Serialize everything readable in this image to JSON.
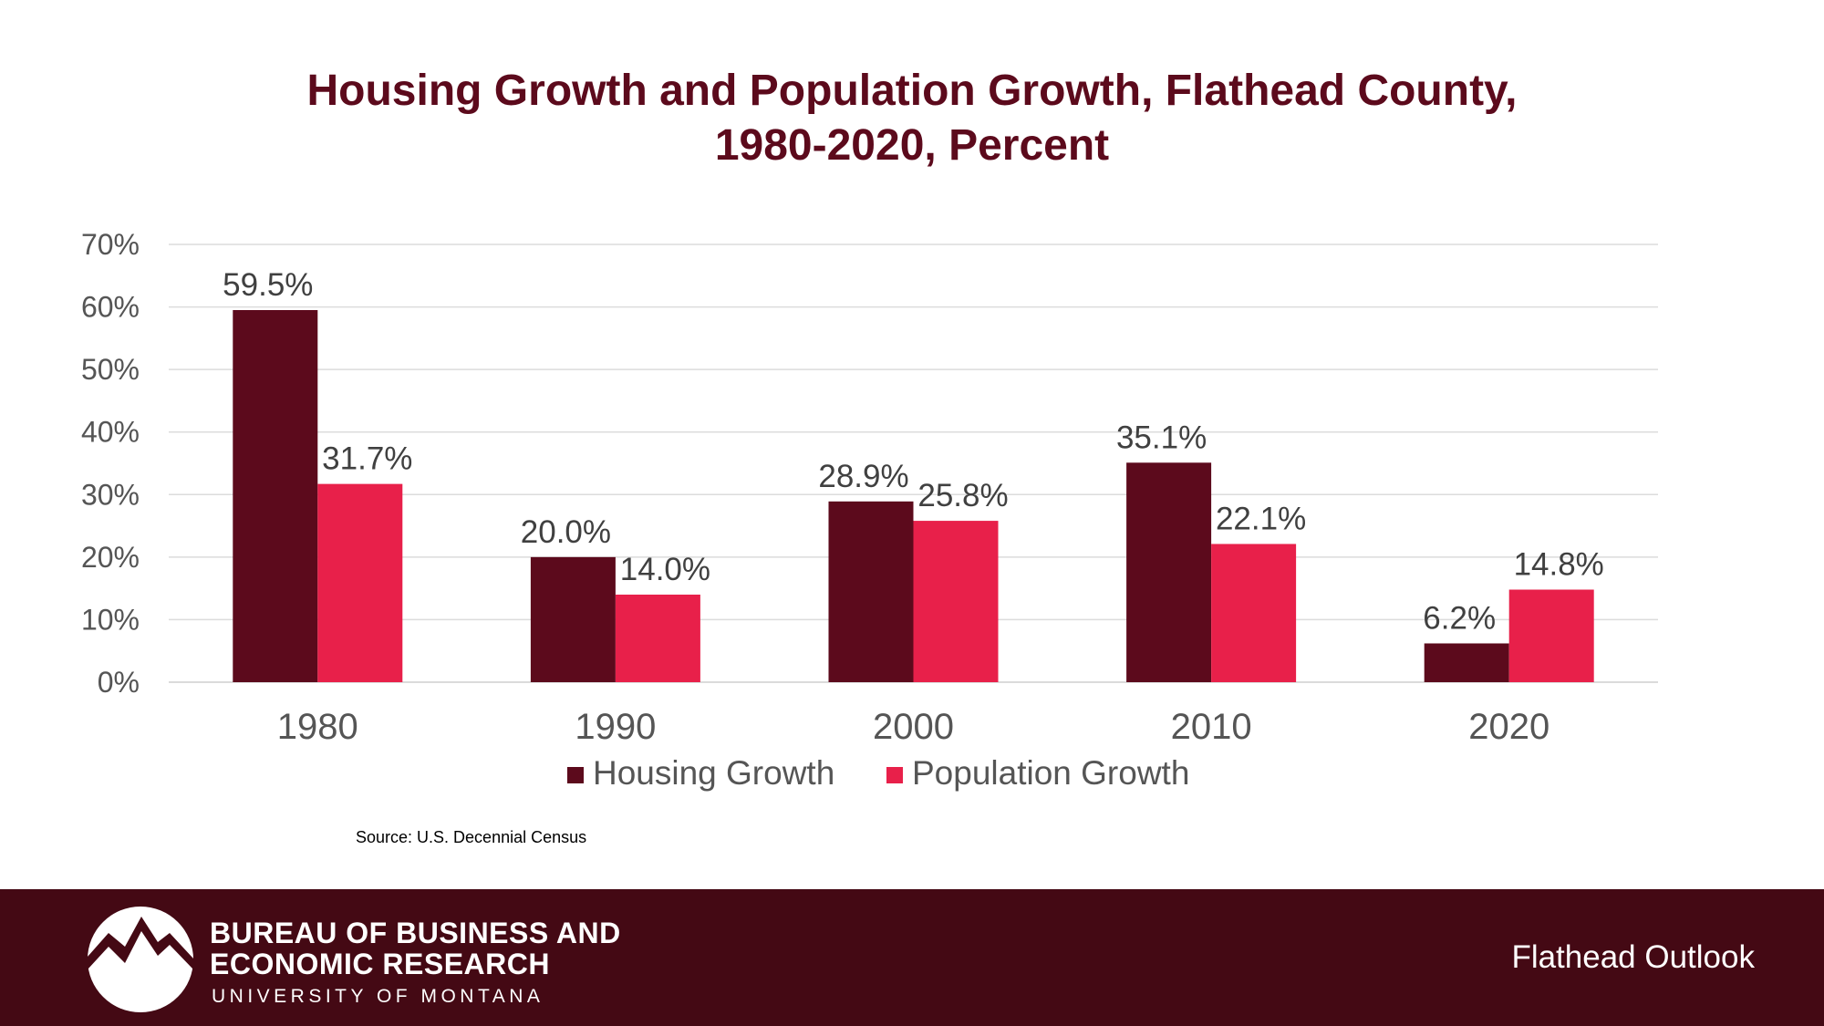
{
  "chart_data": {
    "type": "bar",
    "title_lines": [
      "Housing Growth and Population Growth, Flathead County,",
      "1980-2020, Percent"
    ],
    "categories": [
      "1980",
      "1990",
      "2000",
      "2010",
      "2020"
    ],
    "series": [
      {
        "name": "Housing Growth",
        "color": "#5c0a1c",
        "values": [
          59.5,
          20.0,
          28.9,
          35.1,
          6.2
        ],
        "labels": [
          "59.5%",
          "20.0%",
          "28.9%",
          "35.1%",
          "6.2%"
        ]
      },
      {
        "name": "Population Growth",
        "color": "#e8204a",
        "values": [
          31.7,
          14.0,
          25.8,
          22.1,
          14.8
        ],
        "labels": [
          "31.7%",
          "14.0%",
          "25.8%",
          "22.1%",
          "14.8%"
        ]
      }
    ],
    "y_ticks": [
      "0%",
      "10%",
      "20%",
      "30%",
      "40%",
      "50%",
      "60%",
      "70%"
    ],
    "ylim": [
      0,
      70
    ],
    "grid": true,
    "legend_position": "bottom",
    "source": "Source:  U.S. Decennial Census"
  },
  "footer": {
    "org_line_1": "BUREAU OF BUSINESS AND",
    "org_line_2": "ECONOMIC RESEARCH",
    "org_subline": "UNIVERSITY OF MONTANA",
    "right_label": "Flathead Outlook",
    "band_color": "#440914"
  }
}
